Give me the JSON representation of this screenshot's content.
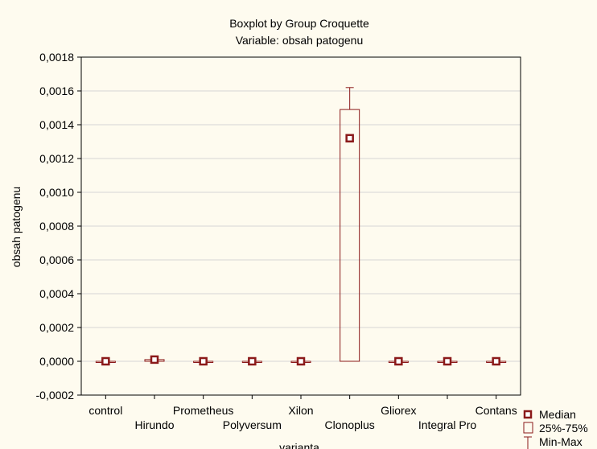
{
  "chart_data": {
    "type": "boxplot",
    "title": "Boxplot by Group Croquette",
    "subtitle": "Variable: obsah patogenu",
    "xlabel": "varianta",
    "ylabel": "obsah patogenu",
    "ylim": [
      -0.0002,
      0.0018
    ],
    "yticks": [
      "0,0018",
      "0,0016",
      "0,0014",
      "0,0012",
      "0,0010",
      "0,0008",
      "0,0006",
      "0,0004",
      "0,0002",
      "0,0000",
      "-0,0002"
    ],
    "ytick_values": [
      0.0018,
      0.0016,
      0.0014,
      0.0012,
      0.001,
      0.0008,
      0.0006,
      0.0004,
      0.0002,
      0.0,
      -0.0002
    ],
    "grid": true,
    "legend_position": "bottom-right",
    "legend": [
      "Median",
      "25%-75%",
      "Min-Max"
    ],
    "categories": [
      "control",
      "Hirundo",
      "Prometheus",
      "Polyversum",
      "Xilon",
      "Clonoplus",
      "Gliorex",
      "Integral Pro",
      "Contans"
    ],
    "median": [
      0.0,
      1e-05,
      0.0,
      0.0,
      0.0,
      0.00132,
      0.0,
      0.0,
      0.0
    ],
    "q1": [
      0.0,
      0.0,
      0.0,
      0.0,
      0.0,
      0.0,
      0.0,
      0.0,
      0.0
    ],
    "q3": [
      0.0,
      1e-05,
      0.0,
      0.0,
      0.0,
      0.00149,
      0.0,
      0.0,
      0.0
    ],
    "min": [
      0.0,
      0.0,
      0.0,
      0.0,
      0.0,
      0.0,
      0.0,
      0.0,
      0.0
    ],
    "max": [
      0.0,
      1e-05,
      0.0,
      0.0,
      0.0,
      0.00162,
      0.0,
      0.0,
      0.0
    ],
    "color": "#8b1a1a"
  }
}
